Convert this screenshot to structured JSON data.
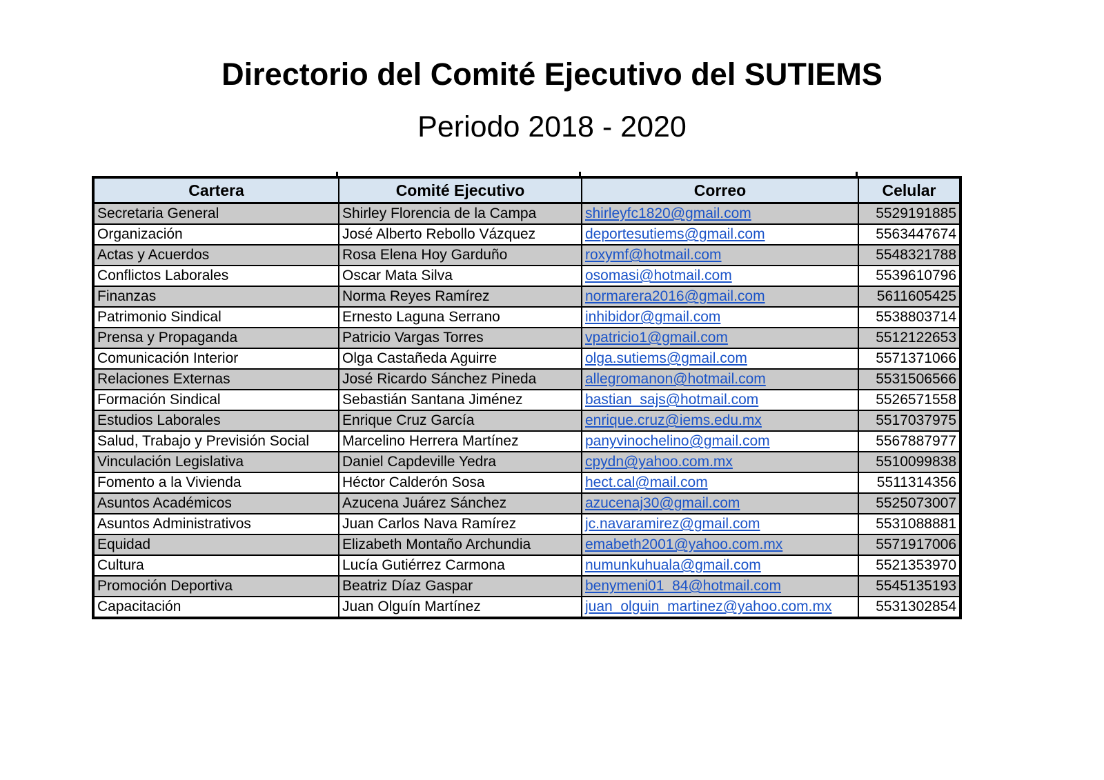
{
  "page": {
    "title": "Directorio del Comité Ejecutivo del SUTIEMS",
    "subtitle": "Periodo 2018 - 2020"
  },
  "table": {
    "columns": [
      "Cartera",
      "Comité Ejecutivo",
      "Correo",
      "Celular"
    ],
    "rows": [
      {
        "cartera": "Secretaria General",
        "comite": "Shirley Florencia de la Campa",
        "correo": "shirleyfc1820@gmail.com",
        "celular": "5529191885"
      },
      {
        "cartera": "Organización",
        "comite": "José Alberto Rebollo Vázquez",
        "correo": "deportesutiems@gmail.com",
        "celular": "5563447674"
      },
      {
        "cartera": "Actas y Acuerdos",
        "comite": "Rosa Elena Hoy Garduño",
        "correo": "roxymf@hotmail.com",
        "celular": "5548321788"
      },
      {
        "cartera": "Conflictos Laborales",
        "comite": "Oscar Mata Silva",
        "correo": "osomasi@hotmail.com",
        "celular": "5539610796"
      },
      {
        "cartera": "Finanzas",
        "comite": "Norma Reyes Ramírez",
        "correo": "normarera2016@gmail.com",
        "celular": "5611605425"
      },
      {
        "cartera": "Patrimonio Sindical",
        "comite": "Ernesto Laguna Serrano",
        "correo": "inhibidor@gmail.com",
        "celular": "5538803714"
      },
      {
        "cartera": "Prensa y Propaganda",
        "comite": "Patricio Vargas Torres",
        "correo": "vpatricio1@gmail.com",
        "celular": "5512122653"
      },
      {
        "cartera": "Comunicación Interior",
        "comite": "Olga Castañeda Aguirre",
        "correo": "olga.sutiems@gmail.com",
        "celular": "5571371066"
      },
      {
        "cartera": "Relaciones Externas",
        "comite": "José Ricardo Sánchez Pineda",
        "correo": "allegromanon@hotmail.com",
        "celular": "5531506566"
      },
      {
        "cartera": "Formación Sindical",
        "comite": "Sebastián Santana Jiménez",
        "correo": "bastian_sajs@hotmail.com",
        "celular": "5526571558"
      },
      {
        "cartera": "Estudios Laborales",
        "comite": "Enrique Cruz García",
        "correo": "enrique.cruz@iems.edu.mx",
        "celular": "5517037975"
      },
      {
        "cartera": "Salud, Trabajo y Previsión Social",
        "comite": "Marcelino Herrera Martínez",
        "correo": "panyvinochelino@gmail.com",
        "celular": "5567887977"
      },
      {
        "cartera": "Vinculación Legislativa",
        "comite": "Daniel Capdeville Yedra",
        "correo": "cpydn@yahoo.com.mx",
        "celular": "5510099838"
      },
      {
        "cartera": "Fomento a la Vivienda",
        "comite": "Héctor Calderón Sosa",
        "correo": "hect.cal@mail.com",
        "celular": "5511314356"
      },
      {
        "cartera": "Asuntos Académicos",
        "comite": "Azucena Juárez Sánchez",
        "correo": "azucenaj30@gmail.com",
        "celular": "5525073007"
      },
      {
        "cartera": "Asuntos Administrativos",
        "comite": "Juan Carlos Nava Ramírez",
        "correo": "jc.navaramirez@gmail.com",
        "celular": "5531088881"
      },
      {
        "cartera": "Equidad",
        "comite": "Elizabeth Montaño Archundia",
        "correo": "emabeth2001@yahoo.com.mx",
        "celular": "5571917006"
      },
      {
        "cartera": "Cultura",
        "comite": "Lucía Gutiérrez Carmona",
        "correo": "numunkuhuala@gmail.com",
        "celular": "5521353970"
      },
      {
        "cartera": "Promoción Deportiva",
        "comite": "Beatriz Díaz Gaspar",
        "correo": "benymeni01_84@hotmail.com",
        "celular": "5545135193"
      },
      {
        "cartera": "Capacitación",
        "comite": "Juan Olguín Martínez",
        "correo": "juan_olguin_martinez@yahoo.com.mx",
        "celular": "5531302854"
      }
    ]
  },
  "colors": {
    "header_bg": "#d7e4f1",
    "row_alt_bg": "#cacaca",
    "row_bg": "#ffffff",
    "link": "#1a53c8",
    "border": "#000000",
    "text": "#000000"
  }
}
